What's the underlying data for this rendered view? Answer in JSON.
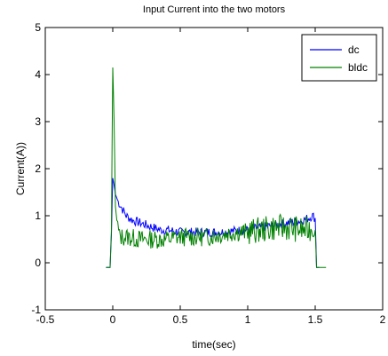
{
  "chart_data": {
    "type": "line",
    "title": "Input Current into the two motors",
    "xlabel": "time(sec)",
    "ylabel": "Current(A))",
    "xlim": [
      -0.5,
      2
    ],
    "ylim": [
      -1,
      5
    ],
    "xticks": [
      -0.5,
      0,
      0.5,
      1,
      1.5,
      2
    ],
    "xtick_labels": [
      "-0.5",
      "0",
      "0.5",
      "1",
      "1.5",
      "2"
    ],
    "yticks": [
      -1,
      0,
      1,
      2,
      3,
      4,
      5
    ],
    "ytick_labels": [
      "-1",
      "0",
      "1",
      "2",
      "3",
      "4",
      "5"
    ],
    "grid": false,
    "legend_position": "top-right",
    "series": [
      {
        "name": "dc",
        "color": "#0000ff",
        "points": [
          [
            -0.05,
            -0.1
          ],
          [
            -0.02,
            -0.1
          ],
          [
            -0.01,
            0.6
          ],
          [
            0.0,
            1.8
          ],
          [
            0.01,
            1.65
          ],
          [
            0.02,
            1.45
          ],
          [
            0.04,
            1.3
          ],
          [
            0.06,
            1.2
          ],
          [
            0.08,
            1.1
          ],
          [
            0.1,
            1.0
          ],
          [
            0.15,
            0.9
          ],
          [
            0.2,
            0.85
          ],
          [
            0.25,
            0.8
          ],
          [
            0.3,
            0.75
          ],
          [
            0.35,
            0.7
          ],
          [
            0.4,
            0.7
          ],
          [
            0.5,
            0.65
          ],
          [
            0.6,
            0.65
          ],
          [
            0.7,
            0.65
          ],
          [
            0.8,
            0.65
          ],
          [
            0.9,
            0.68
          ],
          [
            1.0,
            0.7
          ],
          [
            1.1,
            0.75
          ],
          [
            1.2,
            0.8
          ],
          [
            1.3,
            0.85
          ],
          [
            1.4,
            0.9
          ],
          [
            1.45,
            0.95
          ],
          [
            1.48,
            1.0
          ],
          [
            1.5,
            0.95
          ],
          [
            1.51,
            -0.1
          ],
          [
            1.53,
            -0.1
          ]
        ]
      },
      {
        "name": "bldc",
        "color": "#008000",
        "points": [
          [
            -0.05,
            -0.1
          ],
          [
            -0.02,
            -0.1
          ],
          [
            -0.01,
            0.7
          ],
          [
            0.0,
            4.15
          ],
          [
            0.01,
            3.0
          ],
          [
            0.02,
            1.2
          ],
          [
            0.03,
            0.9
          ],
          [
            0.05,
            0.55
          ],
          [
            0.1,
            0.55
          ],
          [
            0.2,
            0.5
          ],
          [
            0.3,
            0.5
          ],
          [
            0.4,
            0.5
          ],
          [
            0.5,
            0.55
          ],
          [
            0.6,
            0.55
          ],
          [
            0.7,
            0.55
          ],
          [
            0.8,
            0.6
          ],
          [
            0.9,
            0.65
          ],
          [
            1.0,
            0.65
          ],
          [
            1.1,
            0.7
          ],
          [
            1.2,
            0.75
          ],
          [
            1.3,
            0.75
          ],
          [
            1.4,
            0.7
          ],
          [
            1.45,
            0.7
          ],
          [
            1.48,
            0.75
          ],
          [
            1.5,
            0.7
          ],
          [
            1.51,
            -0.1
          ],
          [
            1.58,
            -0.1
          ]
        ]
      }
    ]
  }
}
